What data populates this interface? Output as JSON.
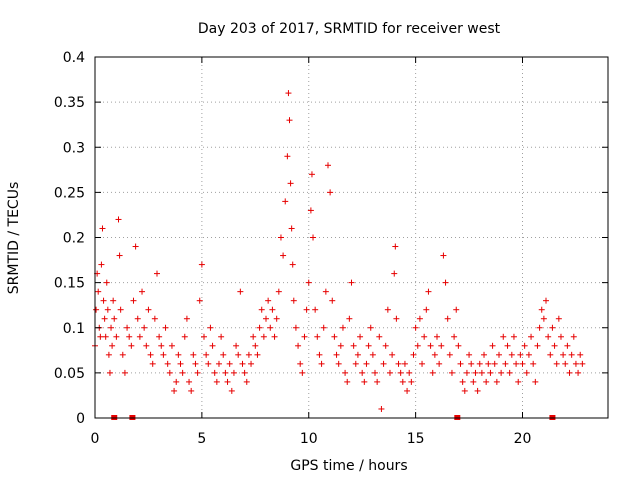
{
  "chart_data": {
    "type": "scatter",
    "title": "Day 203 of 2017, SRMTID for receiver west",
    "xlabel": "GPS time / hours",
    "ylabel": "SRMTID / TECUs",
    "xlim": [
      0,
      24
    ],
    "ylim": [
      0,
      0.4
    ],
    "xticks": [
      0,
      5,
      10,
      15,
      20
    ],
    "xtick_labels": [
      "0",
      "5",
      "10",
      "15",
      "20"
    ],
    "yticks": [
      0,
      0.05,
      0.1,
      0.15,
      0.2,
      0.25,
      0.3,
      0.35,
      0.4
    ],
    "ytick_labels": [
      "0",
      "0.05",
      "0.1",
      "0.15",
      "0.2",
      "0.25",
      "0.3",
      "0.35",
      "0.4"
    ],
    "grid": true,
    "marker": "+",
    "series_color": "#e60000",
    "baseline_markers_x": [
      0.9,
      1.75,
      16.95,
      21.4
    ],
    "points": [
      [
        0.0,
        0.08
      ],
      [
        0.05,
        0.12
      ],
      [
        0.1,
        0.16
      ],
      [
        0.15,
        0.14
      ],
      [
        0.2,
        0.1
      ],
      [
        0.25,
        0.09
      ],
      [
        0.3,
        0.17
      ],
      [
        0.35,
        0.21
      ],
      [
        0.4,
        0.13
      ],
      [
        0.45,
        0.11
      ],
      [
        0.5,
        0.09
      ],
      [
        0.55,
        0.15
      ],
      [
        0.6,
        0.12
      ],
      [
        0.65,
        0.07
      ],
      [
        0.7,
        0.05
      ],
      [
        0.75,
        0.1
      ],
      [
        0.8,
        0.08
      ],
      [
        0.85,
        0.13
      ],
      [
        0.9,
        0.11
      ],
      [
        1.0,
        0.09
      ],
      [
        1.1,
        0.22
      ],
      [
        1.15,
        0.18
      ],
      [
        1.2,
        0.12
      ],
      [
        1.3,
        0.07
      ],
      [
        1.4,
        0.05
      ],
      [
        1.5,
        0.1
      ],
      [
        1.6,
        0.09
      ],
      [
        1.7,
        0.08
      ],
      [
        1.8,
        0.13
      ],
      [
        1.9,
        0.19
      ],
      [
        2.0,
        0.11
      ],
      [
        2.1,
        0.09
      ],
      [
        2.2,
        0.14
      ],
      [
        2.3,
        0.1
      ],
      [
        2.4,
        0.08
      ],
      [
        2.5,
        0.12
      ],
      [
        2.6,
        0.07
      ],
      [
        2.7,
        0.06
      ],
      [
        2.8,
        0.11
      ],
      [
        2.9,
        0.16
      ],
      [
        3.0,
        0.09
      ],
      [
        3.1,
        0.08
      ],
      [
        3.2,
        0.07
      ],
      [
        3.3,
        0.1
      ],
      [
        3.4,
        0.06
      ],
      [
        3.5,
        0.05
      ],
      [
        3.6,
        0.08
      ],
      [
        3.7,
        0.03
      ],
      [
        3.8,
        0.04
      ],
      [
        3.9,
        0.07
      ],
      [
        4.0,
        0.06
      ],
      [
        4.1,
        0.05
      ],
      [
        4.2,
        0.09
      ],
      [
        4.3,
        0.11
      ],
      [
        4.4,
        0.04
      ],
      [
        4.5,
        0.03
      ],
      [
        4.6,
        0.07
      ],
      [
        4.7,
        0.06
      ],
      [
        4.8,
        0.05
      ],
      [
        4.9,
        0.13
      ],
      [
        5.0,
        0.17
      ],
      [
        5.1,
        0.09
      ],
      [
        5.2,
        0.07
      ],
      [
        5.3,
        0.06
      ],
      [
        5.4,
        0.1
      ],
      [
        5.5,
        0.08
      ],
      [
        5.6,
        0.05
      ],
      [
        5.7,
        0.04
      ],
      [
        5.8,
        0.06
      ],
      [
        5.9,
        0.09
      ],
      [
        6.0,
        0.07
      ],
      [
        6.1,
        0.05
      ],
      [
        6.2,
        0.04
      ],
      [
        6.3,
        0.06
      ],
      [
        6.4,
        0.03
      ],
      [
        6.5,
        0.05
      ],
      [
        6.6,
        0.08
      ],
      [
        6.7,
        0.07
      ],
      [
        6.8,
        0.14
      ],
      [
        6.9,
        0.06
      ],
      [
        7.0,
        0.05
      ],
      [
        7.1,
        0.04
      ],
      [
        7.2,
        0.07
      ],
      [
        7.3,
        0.06
      ],
      [
        7.4,
        0.09
      ],
      [
        7.5,
        0.08
      ],
      [
        7.6,
        0.07
      ],
      [
        7.7,
        0.1
      ],
      [
        7.8,
        0.12
      ],
      [
        7.9,
        0.09
      ],
      [
        8.0,
        0.11
      ],
      [
        8.1,
        0.13
      ],
      [
        8.2,
        0.1
      ],
      [
        8.3,
        0.12
      ],
      [
        8.4,
        0.09
      ],
      [
        8.5,
        0.11
      ],
      [
        8.6,
        0.14
      ],
      [
        8.7,
        0.2
      ],
      [
        8.8,
        0.18
      ],
      [
        8.9,
        0.24
      ],
      [
        9.0,
        0.29
      ],
      [
        9.05,
        0.36
      ],
      [
        9.1,
        0.33
      ],
      [
        9.15,
        0.26
      ],
      [
        9.2,
        0.21
      ],
      [
        9.25,
        0.17
      ],
      [
        9.3,
        0.13
      ],
      [
        9.4,
        0.1
      ],
      [
        9.5,
        0.08
      ],
      [
        9.6,
        0.06
      ],
      [
        9.7,
        0.05
      ],
      [
        9.8,
        0.09
      ],
      [
        9.9,
        0.12
      ],
      [
        10.0,
        0.15
      ],
      [
        10.1,
        0.23
      ],
      [
        10.15,
        0.27
      ],
      [
        10.2,
        0.2
      ],
      [
        10.3,
        0.12
      ],
      [
        10.4,
        0.09
      ],
      [
        10.5,
        0.07
      ],
      [
        10.6,
        0.06
      ],
      [
        10.7,
        0.1
      ],
      [
        10.8,
        0.14
      ],
      [
        10.9,
        0.28
      ],
      [
        11.0,
        0.25
      ],
      [
        11.1,
        0.13
      ],
      [
        11.2,
        0.09
      ],
      [
        11.3,
        0.07
      ],
      [
        11.4,
        0.06
      ],
      [
        11.5,
        0.08
      ],
      [
        11.6,
        0.1
      ],
      [
        11.7,
        0.05
      ],
      [
        11.8,
        0.04
      ],
      [
        11.9,
        0.11
      ],
      [
        12.0,
        0.15
      ],
      [
        12.1,
        0.08
      ],
      [
        12.2,
        0.06
      ],
      [
        12.3,
        0.07
      ],
      [
        12.4,
        0.09
      ],
      [
        12.5,
        0.05
      ],
      [
        12.6,
        0.04
      ],
      [
        12.7,
        0.06
      ],
      [
        12.8,
        0.08
      ],
      [
        12.9,
        0.1
      ],
      [
        13.0,
        0.07
      ],
      [
        13.1,
        0.05
      ],
      [
        13.2,
        0.04
      ],
      [
        13.3,
        0.09
      ],
      [
        13.4,
        0.01
      ],
      [
        13.5,
        0.06
      ],
      [
        13.6,
        0.08
      ],
      [
        13.7,
        0.12
      ],
      [
        13.8,
        0.05
      ],
      [
        13.9,
        0.07
      ],
      [
        14.0,
        0.16
      ],
      [
        14.05,
        0.19
      ],
      [
        14.1,
        0.11
      ],
      [
        14.2,
        0.06
      ],
      [
        14.3,
        0.05
      ],
      [
        14.4,
        0.04
      ],
      [
        14.5,
        0.06
      ],
      [
        14.6,
        0.03
      ],
      [
        14.7,
        0.05
      ],
      [
        14.8,
        0.04
      ],
      [
        14.9,
        0.07
      ],
      [
        15.0,
        0.1
      ],
      [
        15.1,
        0.08
      ],
      [
        15.2,
        0.11
      ],
      [
        15.3,
        0.06
      ],
      [
        15.4,
        0.09
      ],
      [
        15.5,
        0.12
      ],
      [
        15.6,
        0.14
      ],
      [
        15.7,
        0.08
      ],
      [
        15.8,
        0.05
      ],
      [
        15.9,
        0.07
      ],
      [
        16.0,
        0.09
      ],
      [
        16.1,
        0.06
      ],
      [
        16.2,
        0.08
      ],
      [
        16.3,
        0.18
      ],
      [
        16.4,
        0.15
      ],
      [
        16.5,
        0.11
      ],
      [
        16.6,
        0.07
      ],
      [
        16.7,
        0.05
      ],
      [
        16.8,
        0.09
      ],
      [
        16.9,
        0.12
      ],
      [
        17.0,
        0.08
      ],
      [
        17.1,
        0.06
      ],
      [
        17.2,
        0.04
      ],
      [
        17.3,
        0.03
      ],
      [
        17.4,
        0.05
      ],
      [
        17.5,
        0.07
      ],
      [
        17.6,
        0.06
      ],
      [
        17.7,
        0.04
      ],
      [
        17.8,
        0.05
      ],
      [
        17.9,
        0.03
      ],
      [
        18.0,
        0.06
      ],
      [
        18.1,
        0.05
      ],
      [
        18.2,
        0.07
      ],
      [
        18.3,
        0.04
      ],
      [
        18.4,
        0.06
      ],
      [
        18.5,
        0.05
      ],
      [
        18.6,
        0.08
      ],
      [
        18.7,
        0.06
      ],
      [
        18.8,
        0.04
      ],
      [
        18.9,
        0.07
      ],
      [
        19.0,
        0.05
      ],
      [
        19.1,
        0.09
      ],
      [
        19.2,
        0.06
      ],
      [
        19.3,
        0.08
      ],
      [
        19.4,
        0.05
      ],
      [
        19.5,
        0.07
      ],
      [
        19.6,
        0.09
      ],
      [
        19.7,
        0.06
      ],
      [
        19.8,
        0.04
      ],
      [
        19.9,
        0.07
      ],
      [
        20.0,
        0.06
      ],
      [
        20.1,
        0.08
      ],
      [
        20.2,
        0.05
      ],
      [
        20.3,
        0.07
      ],
      [
        20.4,
        0.09
      ],
      [
        20.5,
        0.06
      ],
      [
        20.6,
        0.04
      ],
      [
        20.7,
        0.08
      ],
      [
        20.8,
        0.1
      ],
      [
        20.9,
        0.12
      ],
      [
        21.0,
        0.11
      ],
      [
        21.1,
        0.13
      ],
      [
        21.2,
        0.09
      ],
      [
        21.3,
        0.07
      ],
      [
        21.4,
        0.1
      ],
      [
        21.5,
        0.08
      ],
      [
        21.6,
        0.06
      ],
      [
        21.7,
        0.11
      ],
      [
        21.8,
        0.09
      ],
      [
        21.9,
        0.07
      ],
      [
        22.0,
        0.06
      ],
      [
        22.1,
        0.08
      ],
      [
        22.2,
        0.05
      ],
      [
        22.3,
        0.07
      ],
      [
        22.4,
        0.09
      ],
      [
        22.5,
        0.06
      ],
      [
        22.6,
        0.05
      ],
      [
        22.7,
        0.07
      ],
      [
        22.8,
        0.06
      ]
    ]
  }
}
